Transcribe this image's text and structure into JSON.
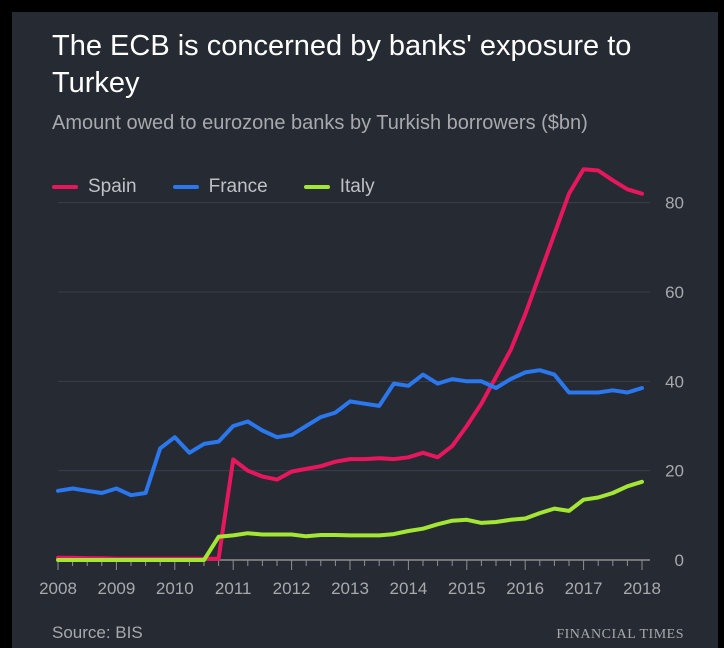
{
  "header": {
    "title": "The ECB is concerned by banks' exposure to Turkey",
    "subtitle": "Amount owed to eurozone banks by Turkish borrowers ($bn)"
  },
  "legend": [
    {
      "name": "Spain",
      "color": "#e8175d"
    },
    {
      "name": "France",
      "color": "#2a77ee"
    },
    {
      "name": "Italy",
      "color": "#a3e633"
    }
  ],
  "footer": {
    "source": "Source: BIS",
    "brand": "FINANCIAL TIMES"
  },
  "chart_data": {
    "type": "line",
    "xlim": [
      2008,
      2018
    ],
    "ylim": [
      0,
      90
    ],
    "x_ticks": [
      "2008",
      "2009",
      "2010",
      "2011",
      "2012",
      "2013",
      "2014",
      "2015",
      "2016",
      "2017",
      "2018"
    ],
    "y_ticks": [
      "0",
      "20",
      "40",
      "60",
      "80"
    ],
    "grid": true,
    "y_axis_position": "right",
    "series": [
      {
        "name": "Spain",
        "color": "#e8175d",
        "x": [
          2008,
          2008.25,
          2008.5,
          2008.75,
          2009,
          2009.25,
          2009.5,
          2009.75,
          2010,
          2010.25,
          2010.5,
          2010.75,
          2011,
          2011.25,
          2011.5,
          2011.75,
          2012,
          2012.25,
          2012.5,
          2012.75,
          2013,
          2013.25,
          2013.5,
          2013.75,
          2014,
          2014.25,
          2014.5,
          2014.75,
          2015,
          2015.25,
          2015.5,
          2015.75,
          2016,
          2016.25,
          2016.5,
          2016.75,
          2017,
          2017.25,
          2017.5,
          2017.75,
          2018
        ],
        "values": [
          0.5,
          0.5,
          0.4,
          0.4,
          0.3,
          0.3,
          0.3,
          0.3,
          0.3,
          0.3,
          0.3,
          0.3,
          22.5,
          20,
          18.7,
          18,
          19.8,
          20.4,
          21,
          22,
          22.6,
          22.6,
          22.8,
          22.6,
          23,
          24,
          23,
          25.5,
          30,
          35,
          41,
          47,
          55,
          64,
          73,
          82,
          87.5,
          87.2,
          85,
          83,
          82
        ]
      },
      {
        "name": "France",
        "color": "#2a77ee",
        "x": [
          2008,
          2008.25,
          2008.5,
          2008.75,
          2009,
          2009.25,
          2009.5,
          2009.75,
          2010,
          2010.25,
          2010.5,
          2010.75,
          2011,
          2011.25,
          2011.5,
          2011.75,
          2012,
          2012.25,
          2012.5,
          2012.75,
          2013,
          2013.25,
          2013.5,
          2013.75,
          2014,
          2014.25,
          2014.5,
          2014.75,
          2015,
          2015.25,
          2015.5,
          2015.75,
          2016,
          2016.25,
          2016.5,
          2016.75,
          2017,
          2017.25,
          2017.5,
          2017.75,
          2018
        ],
        "values": [
          15.5,
          16,
          15.5,
          15,
          16,
          14.5,
          15,
          25,
          27.5,
          24,
          26,
          26.5,
          30,
          31,
          29,
          27.5,
          28,
          30,
          32,
          33,
          35.5,
          35,
          34.5,
          39.5,
          39,
          41.5,
          39.5,
          40.5,
          40,
          40,
          38.5,
          40.5,
          42,
          42.5,
          41.5,
          37.5,
          37.5,
          37.5,
          38,
          37.5,
          38.5
        ]
      },
      {
        "name": "Italy",
        "color": "#a3e633",
        "x": [
          2008,
          2008.25,
          2008.5,
          2008.75,
          2009,
          2009.25,
          2009.5,
          2009.75,
          2010,
          2010.25,
          2010.5,
          2010.75,
          2011,
          2011.25,
          2011.5,
          2011.75,
          2012,
          2012.25,
          2012.5,
          2012.75,
          2013,
          2013.25,
          2013.5,
          2013.75,
          2014,
          2014.25,
          2014.5,
          2014.75,
          2015,
          2015.25,
          2015.5,
          2015.75,
          2016,
          2016.25,
          2016.5,
          2016.75,
          2017,
          2017.25,
          2017.5,
          2017.75,
          2018
        ],
        "values": [
          0,
          0,
          0,
          0,
          0,
          0,
          0,
          0,
          0,
          0,
          0,
          5.2,
          5.5,
          6,
          5.7,
          5.7,
          5.7,
          5.3,
          5.6,
          5.6,
          5.5,
          5.5,
          5.5,
          5.8,
          6.5,
          7,
          8,
          8.8,
          9,
          8.3,
          8.5,
          9,
          9.3,
          10.5,
          11.5,
          11,
          13.5,
          14,
          15,
          16.5,
          17.5
        ]
      }
    ]
  }
}
